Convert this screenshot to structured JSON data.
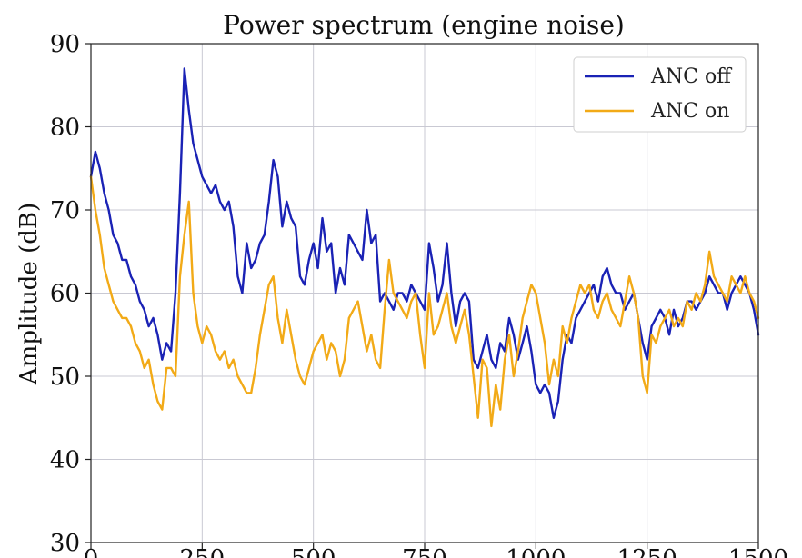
{
  "chart_data": {
    "type": "line",
    "title": "Power spectrum (engine noise)",
    "ylabel": "Amplitude (dB)",
    "xlabel": "",
    "xlim": [
      0,
      1500
    ],
    "ylim": [
      30,
      90
    ],
    "grid": true,
    "legend_position": "top-right",
    "x_ticks": [
      "0",
      "250",
      "500",
      "750",
      "1000",
      "1250",
      "1500"
    ],
    "y_ticks": [
      "30",
      "40",
      "50",
      "60",
      "70",
      "80",
      "90"
    ],
    "series": [
      {
        "name": "ANC off",
        "color": "#1a22b5",
        "x": [
          0,
          10,
          20,
          30,
          40,
          50,
          60,
          70,
          80,
          90,
          100,
          110,
          120,
          130,
          140,
          150,
          160,
          170,
          180,
          190,
          200,
          210,
          220,
          230,
          240,
          250,
          260,
          270,
          280,
          290,
          300,
          310,
          320,
          330,
          340,
          350,
          360,
          370,
          380,
          390,
          400,
          410,
          420,
          430,
          440,
          450,
          460,
          470,
          480,
          490,
          500,
          510,
          520,
          530,
          540,
          550,
          560,
          570,
          580,
          590,
          600,
          610,
          620,
          630,
          640,
          650,
          660,
          670,
          680,
          690,
          700,
          710,
          720,
          730,
          740,
          750,
          760,
          770,
          780,
          790,
          800,
          810,
          820,
          830,
          840,
          850,
          860,
          870,
          880,
          890,
          900,
          910,
          920,
          930,
          940,
          950,
          960,
          970,
          980,
          990,
          1000,
          1010,
          1020,
          1030,
          1040,
          1050,
          1060,
          1070,
          1080,
          1090,
          1100,
          1110,
          1120,
          1130,
          1140,
          1150,
          1160,
          1170,
          1180,
          1190,
          1200,
          1210,
          1220,
          1230,
          1240,
          1250,
          1260,
          1270,
          1280,
          1290,
          1300,
          1310,
          1320,
          1330,
          1340,
          1350,
          1360,
          1370,
          1380,
          1390,
          1400,
          1410,
          1420,
          1430,
          1440,
          1450,
          1460,
          1470,
          1480,
          1490,
          1500
        ],
        "values": [
          74,
          77,
          75,
          72,
          70,
          67,
          66,
          64,
          64,
          62,
          61,
          59,
          58,
          56,
          57,
          55,
          52,
          54,
          53,
          60,
          72,
          87,
          82,
          78,
          76,
          74,
          73,
          72,
          73,
          71,
          70,
          71,
          68,
          62,
          60,
          66,
          63,
          64,
          66,
          67,
          71,
          76,
          74,
          68,
          71,
          69,
          68,
          62,
          61,
          64,
          66,
          63,
          69,
          65,
          66,
          60,
          63,
          61,
          67,
          66,
          65,
          64,
          70,
          66,
          67,
          59,
          60,
          59,
          58,
          60,
          60,
          59,
          61,
          60,
          59,
          58,
          66,
          63,
          59,
          61,
          66,
          60,
          56,
          59,
          60,
          59,
          52,
          51,
          53,
          55,
          52,
          51,
          54,
          53,
          57,
          55,
          52,
          54,
          56,
          53,
          49,
          48,
          49,
          48,
          45,
          47,
          52,
          55,
          54,
          57,
          58,
          59,
          60,
          61,
          59,
          62,
          63,
          61,
          60,
          60,
          58,
          59,
          60,
          57,
          54,
          52,
          56,
          57,
          58,
          57,
          55,
          58,
          56,
          57,
          59,
          59,
          58,
          59,
          60,
          62,
          61,
          60,
          60,
          58,
          60,
          61,
          62,
          61,
          60,
          58,
          55
        ]
      },
      {
        "name": "ANC on",
        "color": "#f2aa17",
        "x": [
          0,
          10,
          20,
          30,
          40,
          50,
          60,
          70,
          80,
          90,
          100,
          110,
          120,
          130,
          140,
          150,
          160,
          170,
          180,
          190,
          200,
          210,
          220,
          230,
          240,
          250,
          260,
          270,
          280,
          290,
          300,
          310,
          320,
          330,
          340,
          350,
          360,
          370,
          380,
          390,
          400,
          410,
          420,
          430,
          440,
          450,
          460,
          470,
          480,
          490,
          500,
          510,
          520,
          530,
          540,
          550,
          560,
          570,
          580,
          590,
          600,
          610,
          620,
          630,
          640,
          650,
          660,
          670,
          680,
          690,
          700,
          710,
          720,
          730,
          740,
          750,
          760,
          770,
          780,
          790,
          800,
          810,
          820,
          830,
          840,
          850,
          860,
          870,
          880,
          890,
          900,
          910,
          920,
          930,
          940,
          950,
          960,
          970,
          980,
          990,
          1000,
          1010,
          1020,
          1030,
          1040,
          1050,
          1060,
          1070,
          1080,
          1090,
          1100,
          1110,
          1120,
          1130,
          1140,
          1150,
          1160,
          1170,
          1180,
          1190,
          1200,
          1210,
          1220,
          1230,
          1240,
          1250,
          1260,
          1270,
          1280,
          1290,
          1300,
          1310,
          1320,
          1330,
          1340,
          1350,
          1360,
          1370,
          1380,
          1390,
          1400,
          1410,
          1420,
          1430,
          1440,
          1450,
          1460,
          1470,
          1480,
          1490,
          1500
        ],
        "values": [
          74,
          70,
          67,
          63,
          61,
          59,
          58,
          57,
          57,
          56,
          54,
          53,
          51,
          52,
          49,
          47,
          46,
          51,
          51,
          50,
          62,
          67,
          71,
          60,
          56,
          54,
          56,
          55,
          53,
          52,
          53,
          51,
          52,
          50,
          49,
          48,
          48,
          51,
          55,
          58,
          61,
          62,
          57,
          54,
          58,
          55,
          52,
          50,
          49,
          51,
          53,
          54,
          55,
          52,
          54,
          53,
          50,
          52,
          57,
          58,
          59,
          56,
          53,
          55,
          52,
          51,
          58,
          64,
          60,
          59,
          58,
          57,
          59,
          60,
          55,
          51,
          60,
          55,
          56,
          58,
          60,
          56,
          54,
          56,
          58,
          55,
          50,
          45,
          52,
          51,
          44,
          49,
          46,
          52,
          55,
          50,
          53,
          57,
          59,
          61,
          60,
          57,
          54,
          49,
          52,
          50,
          56,
          54,
          57,
          59,
          61,
          60,
          61,
          58,
          57,
          59,
          60,
          58,
          57,
          56,
          59,
          62,
          60,
          57,
          50,
          48,
          55,
          54,
          56,
          57,
          58,
          56,
          57,
          56,
          59,
          58,
          60,
          59,
          61,
          65,
          62,
          61,
          60,
          59,
          62,
          61,
          60,
          62,
          60,
          59,
          57
        ]
      }
    ]
  }
}
